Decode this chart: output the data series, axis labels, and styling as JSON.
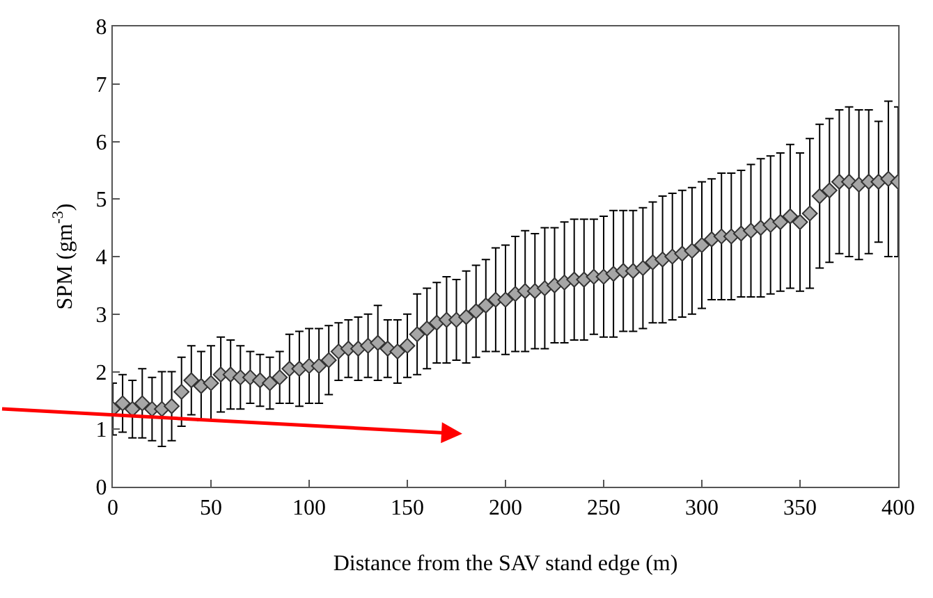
{
  "chart_data": {
    "type": "scatter",
    "xlabel": "Distance from the SAV stand edge (m)",
    "ylabel": "SPM (gm$^{-3}$)",
    "x": [
      0,
      5,
      10,
      15,
      20,
      25,
      30,
      35,
      40,
      45,
      50,
      55,
      60,
      65,
      70,
      75,
      80,
      85,
      90,
      95,
      100,
      105,
      110,
      115,
      120,
      125,
      130,
      135,
      140,
      145,
      150,
      155,
      160,
      165,
      170,
      175,
      180,
      185,
      190,
      195,
      200,
      205,
      210,
      215,
      220,
      225,
      230,
      235,
      240,
      245,
      250,
      255,
      260,
      265,
      270,
      275,
      280,
      285,
      290,
      295,
      300,
      305,
      310,
      315,
      320,
      325,
      330,
      335,
      340,
      345,
      350,
      355,
      360,
      365,
      370,
      375,
      380,
      385,
      390,
      395,
      400
    ],
    "series": [
      {
        "color": "#a6a6a6",
        "values": [
          1.35,
          1.45,
          1.35,
          1.45,
          1.35,
          1.35,
          1.4,
          1.65,
          1.85,
          1.75,
          1.8,
          1.95,
          1.95,
          1.9,
          1.9,
          1.85,
          1.8,
          1.9,
          2.05,
          2.05,
          2.1,
          2.1,
          2.2,
          2.35,
          2.4,
          2.4,
          2.45,
          2.5,
          2.4,
          2.35,
          2.45,
          2.65,
          2.75,
          2.85,
          2.9,
          2.9,
          2.95,
          3.05,
          3.15,
          3.25,
          3.25,
          3.35,
          3.4,
          3.4,
          3.45,
          3.5,
          3.55,
          3.6,
          3.6,
          3.65,
          3.65,
          3.7,
          3.75,
          3.75,
          3.8,
          3.9,
          3.95,
          4.0,
          4.05,
          4.1,
          4.2,
          4.3,
          4.35,
          4.35,
          4.4,
          4.45,
          4.5,
          4.55,
          4.6,
          4.7,
          4.6,
          4.75,
          5.05,
          5.15,
          5.3,
          5.3,
          5.25,
          5.3,
          5.3,
          5.35,
          5.3
        ],
        "errors": [
          0.45,
          0.5,
          0.5,
          0.6,
          0.55,
          0.65,
          0.6,
          0.6,
          0.6,
          0.6,
          0.65,
          0.65,
          0.6,
          0.55,
          0.45,
          0.45,
          0.45,
          0.45,
          0.6,
          0.65,
          0.65,
          0.65,
          0.6,
          0.5,
          0.5,
          0.55,
          0.55,
          0.65,
          0.5,
          0.55,
          0.55,
          0.7,
          0.7,
          0.7,
          0.75,
          0.7,
          0.8,
          0.8,
          0.8,
          0.9,
          0.95,
          1.0,
          1.05,
          1.0,
          1.05,
          1.0,
          1.05,
          1.05,
          1.05,
          1.0,
          1.05,
          1.1,
          1.05,
          1.05,
          1.05,
          1.05,
          1.1,
          1.1,
          1.1,
          1.1,
          1.1,
          1.05,
          1.1,
          1.1,
          1.1,
          1.15,
          1.2,
          1.2,
          1.2,
          1.25,
          1.2,
          1.3,
          1.25,
          1.25,
          1.25,
          1.3,
          1.3,
          1.25,
          1.05,
          1.35,
          1.3
        ]
      }
    ],
    "xlim": [
      0,
      400
    ],
    "xticks": [
      0,
      50,
      100,
      150,
      200,
      250,
      300,
      350,
      400
    ],
    "ylim": [
      0,
      8
    ],
    "yticks": [
      0,
      1,
      2,
      3,
      4,
      5,
      6,
      7,
      8
    ],
    "marker": "diamond"
  }
}
